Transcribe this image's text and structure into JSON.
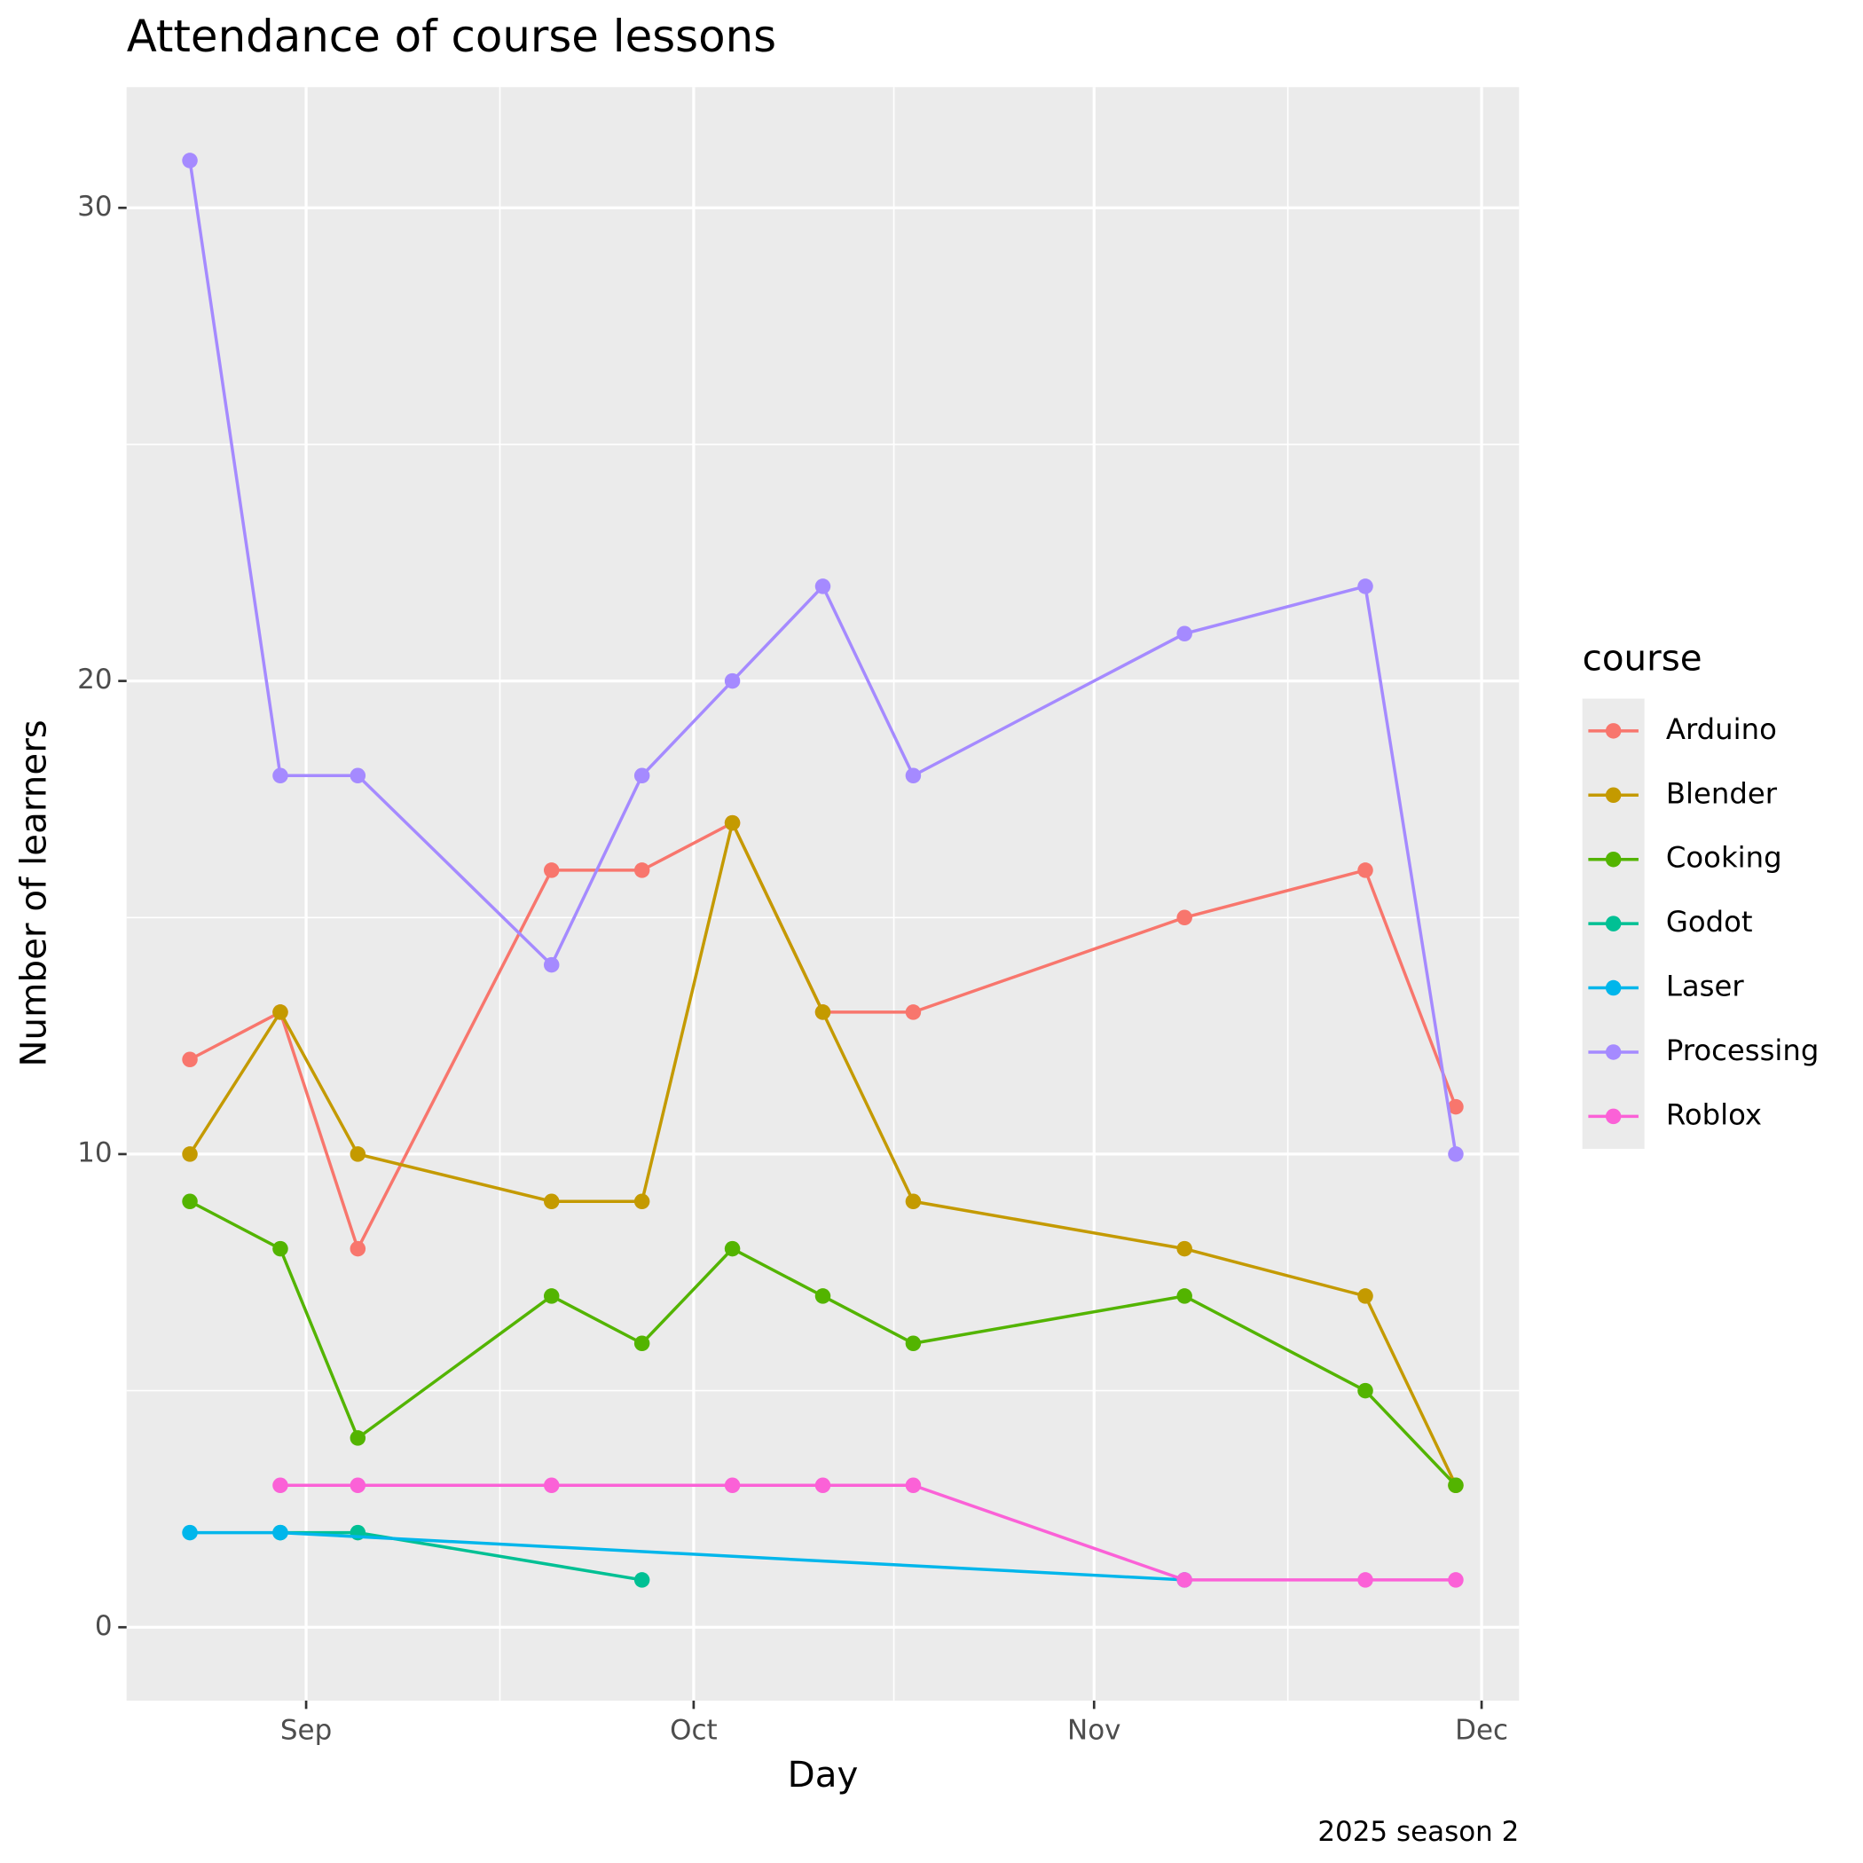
{
  "chart_data": {
    "type": "line",
    "title": "Attendance of course lessons",
    "x_label": "Day",
    "y_label": "Number of learners",
    "caption": "2025 season 2",
    "legend_title": "course",
    "legend_position": "right",
    "grid": true,
    "xlim": [
      230.1,
      337.9
    ],
    "xticks": [
      {
        "value": 244,
        "label": "Sep"
      },
      {
        "value": 274,
        "label": "Oct"
      },
      {
        "value": 305,
        "label": "Nov"
      },
      {
        "value": 335,
        "label": "Dec"
      }
    ],
    "minor_xticks": [
      259,
      289.5,
      320
    ],
    "ylim": [
      -1.55,
      32.55
    ],
    "yticks": [
      0,
      10,
      20,
      30
    ],
    "minor_yticks": [
      5,
      15,
      25
    ],
    "series": [
      {
        "name": "Arduino",
        "color": "#F8766D",
        "x": [
          235,
          242,
          248,
          263,
          270,
          277,
          284,
          291,
          312,
          326,
          333
        ],
        "values": [
          12,
          13,
          8,
          16,
          16,
          17,
          13,
          13,
          15,
          16,
          11
        ]
      },
      {
        "name": "Blender",
        "color": "#C49A00",
        "x": [
          235,
          242,
          248,
          263,
          270,
          277,
          284,
          291,
          312,
          326,
          333
        ],
        "values": [
          10,
          13,
          10,
          9,
          9,
          17,
          13,
          9,
          8,
          7,
          3
        ]
      },
      {
        "name": "Cooking",
        "color": "#53B400",
        "x": [
          235,
          242,
          248,
          263,
          270,
          277,
          284,
          291,
          312,
          326,
          333
        ],
        "values": [
          9,
          8,
          4,
          7,
          6,
          8,
          7,
          6,
          7,
          5,
          3
        ]
      },
      {
        "name": "Godot",
        "color": "#00C094",
        "x": [
          242,
          248,
          270
        ],
        "values": [
          2,
          2,
          1
        ]
      },
      {
        "name": "Laser",
        "color": "#00B6EB",
        "x": [
          235,
          242,
          312
        ],
        "values": [
          2,
          2,
          1
        ]
      },
      {
        "name": "Processing",
        "color": "#A58AFF",
        "x": [
          235,
          242,
          248,
          263,
          270,
          277,
          284,
          291,
          312,
          326,
          333
        ],
        "values": [
          31,
          18,
          18,
          14,
          18,
          20,
          22,
          18,
          21,
          22,
          10
        ]
      },
      {
        "name": "Roblox",
        "color": "#FB61D7",
        "x": [
          242,
          248,
          263,
          277,
          284,
          291,
          312,
          326,
          333
        ],
        "values": [
          3,
          3,
          3,
          3,
          3,
          3,
          1,
          1,
          1
        ]
      }
    ]
  }
}
